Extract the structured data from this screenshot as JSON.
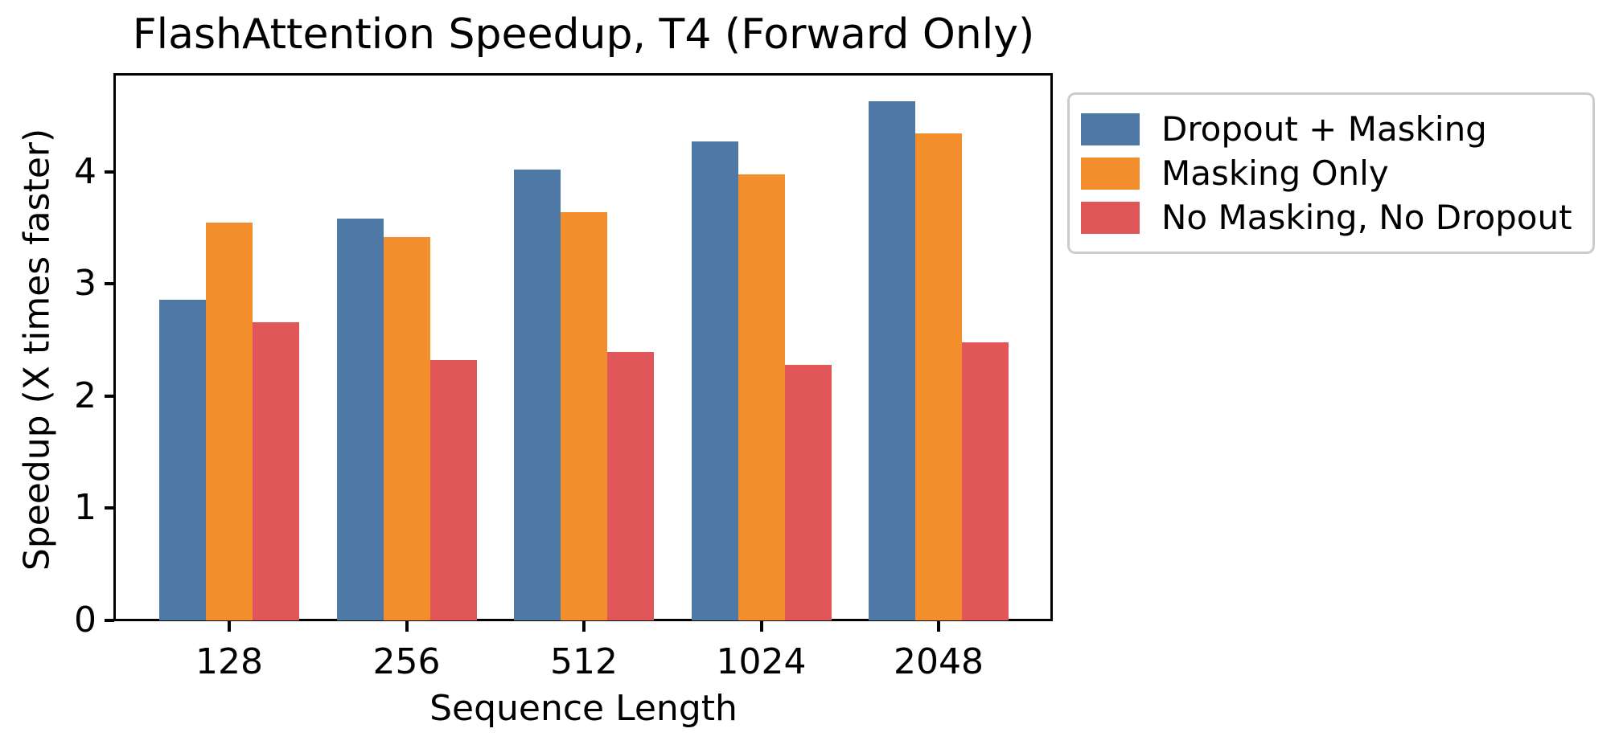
{
  "chart_data": {
    "type": "bar",
    "title": "FlashAttention Speedup, T4 (Forward Only)",
    "xlabel": "Sequence Length",
    "ylabel": "Speedup (X times faster)",
    "categories": [
      "128",
      "256",
      "512",
      "1024",
      "2048"
    ],
    "series": [
      {
        "name": "Dropout + Masking",
        "color": "#4E79A7",
        "values": [
          2.86,
          3.58,
          4.02,
          4.27,
          4.63
        ]
      },
      {
        "name": "Masking Only",
        "color": "#F28E2B",
        "values": [
          3.55,
          3.42,
          3.64,
          3.98,
          4.34
        ]
      },
      {
        "name": "No Masking, No Dropout",
        "color": "#E15759",
        "values": [
          2.66,
          2.32,
          2.39,
          2.28,
          2.48
        ]
      }
    ],
    "yticks": [
      "0",
      "1",
      "2",
      "3",
      "4"
    ],
    "ylim": [
      0,
      4.865
    ],
    "grid": false,
    "legend_position": "outside-upper-right",
    "colors": {
      "axis": "#000000",
      "text": "#000000",
      "legend_border": "#cccccc",
      "background": "#ffffff"
    }
  }
}
